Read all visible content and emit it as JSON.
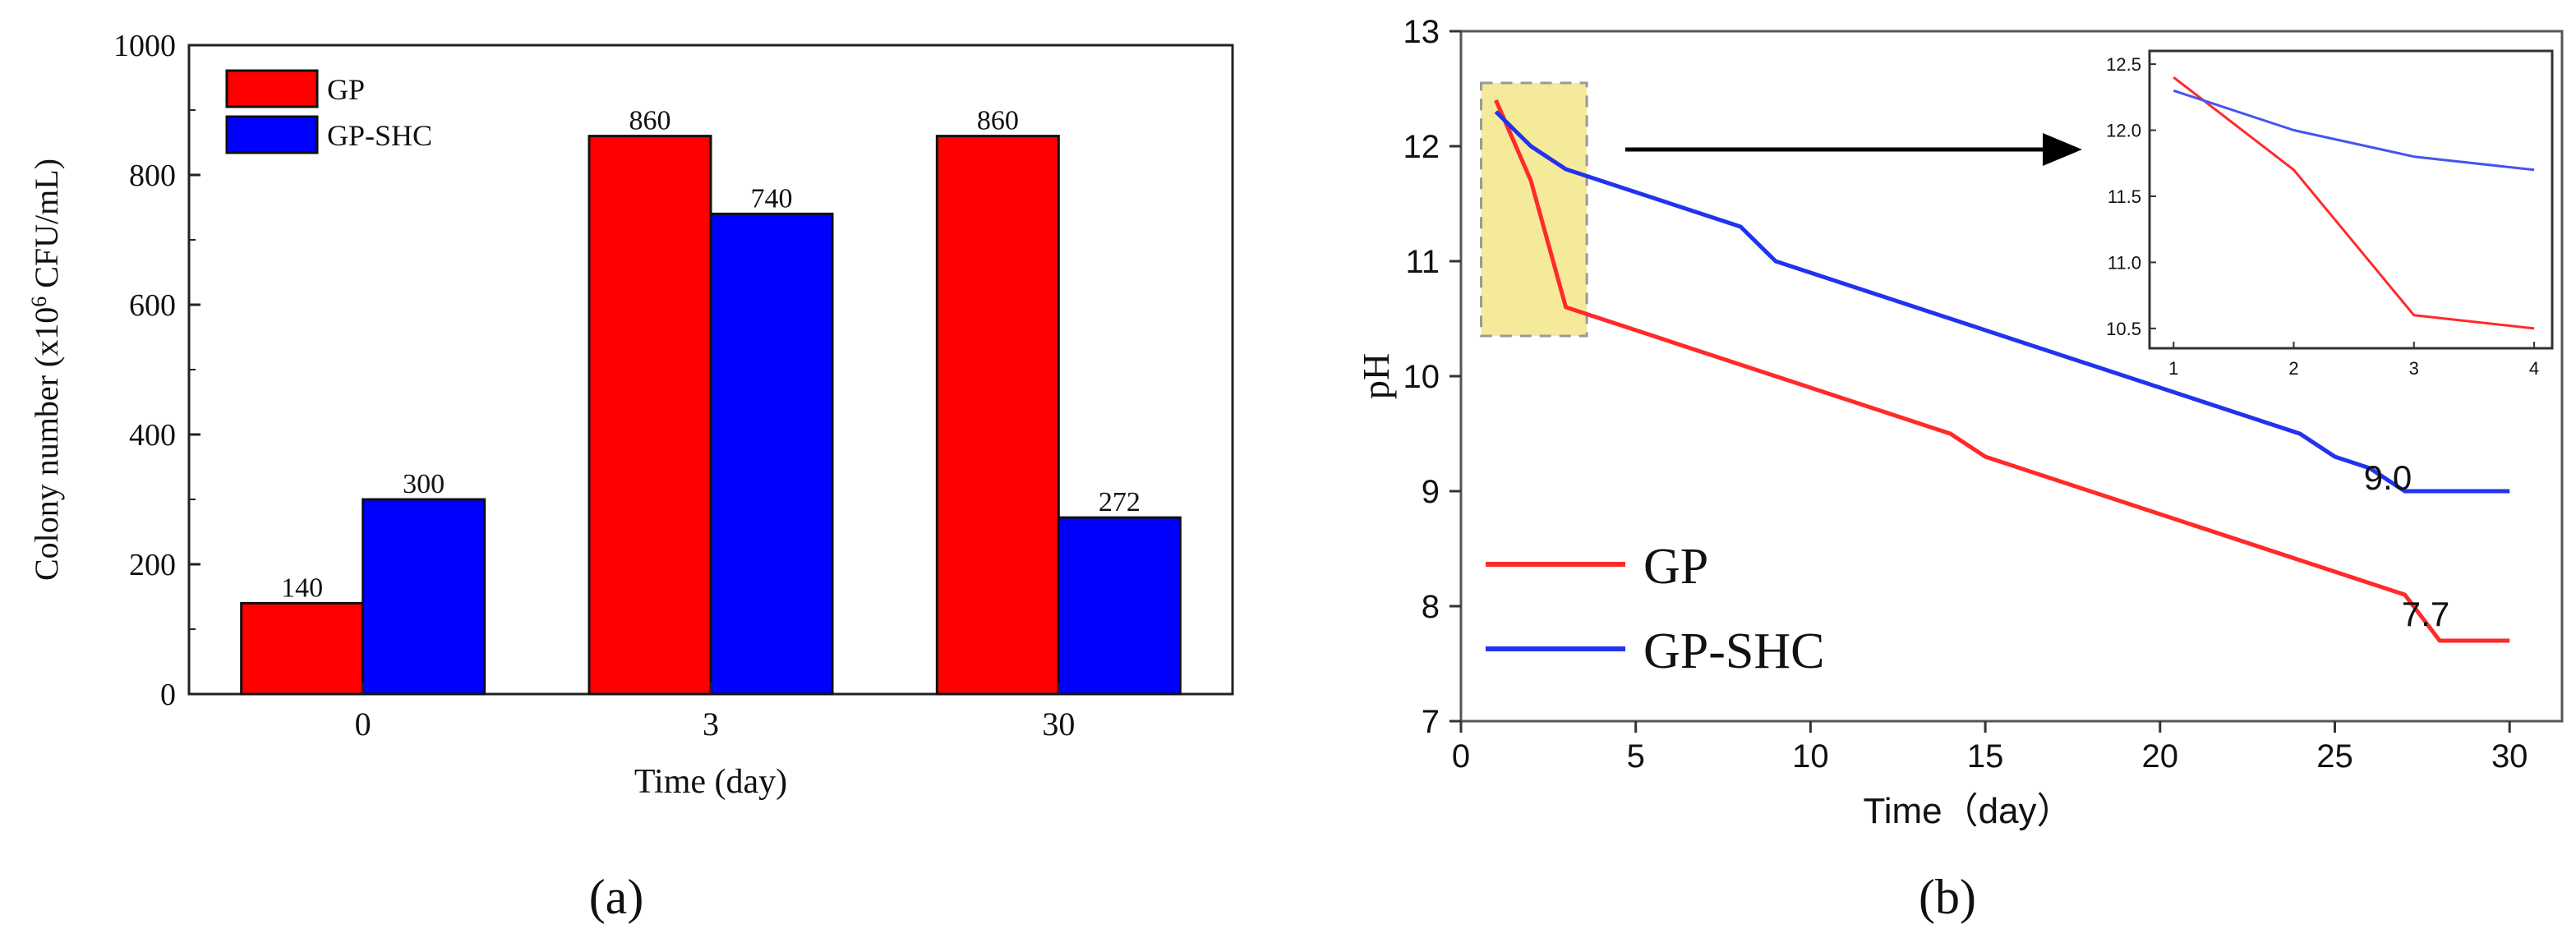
{
  "chart_data": [
    {
      "type": "bar",
      "panel_label": "(a)",
      "xlabel": "Time (day)",
      "ylabel_main": "Colony number (x10",
      "ylabel_sup": "6",
      "ylabel_tail": " CFU/mL)",
      "categories": [
        "0",
        "3",
        "30"
      ],
      "ylim": [
        0,
        1000
      ],
      "yticks": [
        0,
        200,
        400,
        600,
        800,
        1000
      ],
      "legend_position": "top-left",
      "series": [
        {
          "name": "GP",
          "color": "#ff0000",
          "values": [
            140,
            860,
            860
          ],
          "labels": [
            "140",
            "860",
            "860"
          ]
        },
        {
          "name": "GP-SHC",
          "color": "#0000ff",
          "values": [
            300,
            740,
            272
          ],
          "labels": [
            "300",
            "740",
            "272"
          ]
        }
      ]
    },
    {
      "type": "line",
      "panel_label": "(b)",
      "xlabel": "Time（day）",
      "ylabel": "pH",
      "xlim": [
        0,
        31.5
      ],
      "ylim": [
        7,
        13
      ],
      "xticks": [
        0,
        5,
        10,
        15,
        20,
        25,
        30
      ],
      "yticks": [
        7,
        8,
        9,
        10,
        11,
        12,
        13
      ],
      "legend_position": "bottom-left",
      "highlight_range": {
        "x": [
          1,
          3.6
        ],
        "y": [
          10.35,
          12.55
        ],
        "color": "#f5ea9a"
      },
      "series": [
        {
          "name": "GP",
          "color": "#ff2a2a",
          "x": [
            1,
            2,
            3,
            4,
            14,
            15,
            27,
            28,
            30
          ],
          "y": [
            12.4,
            11.7,
            10.6,
            10.5,
            9.5,
            9.3,
            8.1,
            7.7,
            7.7
          ]
        },
        {
          "name": "GP-SHC",
          "color": "#2233ee",
          "x": [
            1,
            2,
            3,
            4,
            8,
            9,
            24,
            25,
            26,
            27,
            30
          ],
          "y": [
            12.3,
            12.0,
            11.8,
            11.7,
            11.3,
            11.0,
            9.5,
            9.3,
            9.2,
            9.0,
            9.0
          ]
        }
      ],
      "end_labels": [
        {
          "series": "GP-SHC",
          "text": "9.0"
        },
        {
          "series": "GP",
          "text": "7.7"
        }
      ],
      "inset": {
        "xlim": [
          0.8,
          4.15
        ],
        "ylim": [
          10.35,
          12.6
        ],
        "xticks": [
          1,
          2,
          3,
          4
        ],
        "ytick_labels": [
          "10.5",
          "11.0",
          "11.5",
          "12.0",
          "12.5"
        ],
        "ytick_values": [
          10.5,
          11.0,
          11.5,
          12.0,
          12.5
        ],
        "series": [
          {
            "name": "GP",
            "color": "#ff2a2a",
            "x": [
              1,
              2,
              3,
              4
            ],
            "y": [
              12.4,
              11.7,
              10.6,
              10.5
            ]
          },
          {
            "name": "GP-SHC",
            "color": "#4455ee",
            "x": [
              1,
              2,
              3,
              4
            ],
            "y": [
              12.3,
              12.0,
              11.8,
              11.7
            ]
          }
        ]
      }
    }
  ]
}
